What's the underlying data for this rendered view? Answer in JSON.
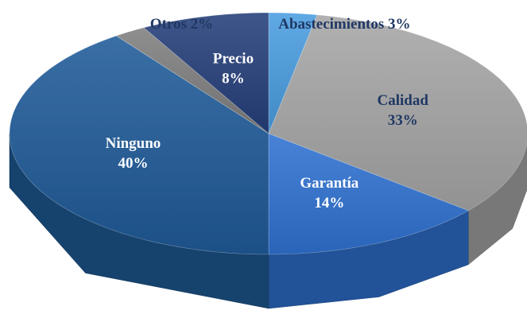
{
  "chart_data": {
    "type": "pie3d",
    "categories": [
      "Abastecimientos",
      "Calidad",
      "Garantía",
      "Ninguno",
      "Otros",
      "Precio"
    ],
    "values": [
      3,
      33,
      14,
      40,
      2,
      8
    ],
    "value_labels": [
      "3%",
      "33%",
      "14%",
      "40%",
      "2%",
      "8%"
    ],
    "colors": [
      "#4a9de0",
      "#a6a6a6",
      "#2f72d2",
      "#1f5b99",
      "#7f7f7f",
      "#253f7a"
    ]
  }
}
